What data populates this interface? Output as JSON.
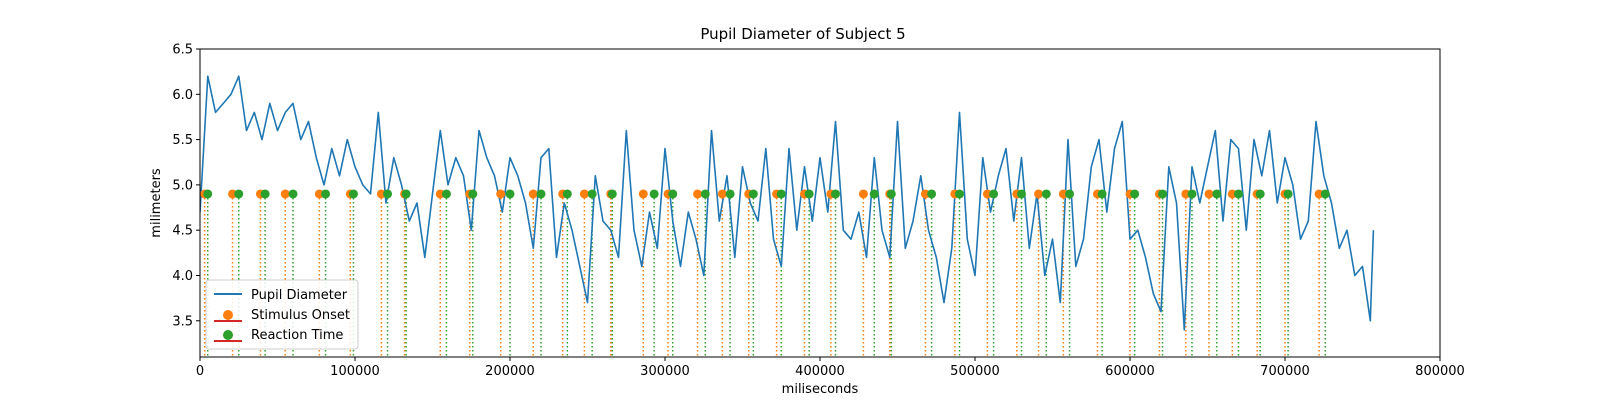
{
  "chart_data": {
    "type": "line",
    "title": "Pupil Diameter of Subject 5",
    "xlabel": "miliseconds",
    "ylabel": "milimeters",
    "xlim": [
      0,
      800000
    ],
    "ylim": [
      3.1,
      6.5
    ],
    "xticks": [
      0,
      100000,
      200000,
      300000,
      400000,
      500000,
      600000,
      700000,
      800000
    ],
    "xtick_labels": [
      "0",
      "100000",
      "200000",
      "300000",
      "400000",
      "500000",
      "600000",
      "700000",
      "800000"
    ],
    "yticks": [
      3.5,
      4.0,
      4.5,
      5.0,
      5.5,
      6.0,
      6.5
    ],
    "ytick_labels": [
      "3.5",
      "4.0",
      "4.5",
      "5.0",
      "5.5",
      "6.0",
      "6.5"
    ],
    "grid": false,
    "legend_position": "lower-left",
    "marker_y": 4.9,
    "series": [
      {
        "name": "Pupil Diameter",
        "kind": "line",
        "color": "#1f77b4",
        "x": [
          0,
          5000,
          10000,
          15000,
          20000,
          25000,
          30000,
          35000,
          40000,
          45000,
          50000,
          55000,
          60000,
          65000,
          70000,
          75000,
          80000,
          85000,
          90000,
          95000,
          100000,
          105000,
          110000,
          115000,
          120000,
          125000,
          130000,
          135000,
          140000,
          145000,
          150000,
          155000,
          160000,
          165000,
          170000,
          175000,
          180000,
          185000,
          190000,
          195000,
          200000,
          205000,
          210000,
          215000,
          220000,
          225000,
          230000,
          235000,
          240000,
          245000,
          250000,
          255000,
          260000,
          265000,
          270000,
          275000,
          280000,
          285000,
          290000,
          295000,
          300000,
          305000,
          310000,
          315000,
          320000,
          325000,
          330000,
          335000,
          340000,
          345000,
          350000,
          355000,
          360000,
          365000,
          370000,
          375000,
          380000,
          385000,
          390000,
          395000,
          400000,
          405000,
          410000,
          415000,
          420000,
          425000,
          430000,
          435000,
          440000,
          445000,
          450000,
          455000,
          460000,
          465000,
          470000,
          475000,
          480000,
          485000,
          490000,
          495000,
          500000,
          505000,
          510000,
          515000,
          520000,
          525000,
          530000,
          535000,
          540000,
          545000,
          550000,
          555000,
          560000,
          565000,
          570000,
          575000,
          580000,
          585000,
          590000,
          595000,
          600000,
          605000,
          610000,
          615000,
          620000,
          625000,
          630000,
          635000,
          640000,
          645000,
          650000,
          655000,
          660000,
          665000,
          670000,
          675000,
          680000,
          685000,
          690000,
          695000,
          700000,
          705000,
          710000,
          715000,
          720000,
          725000,
          730000,
          735000,
          740000,
          745000,
          750000,
          755000,
          757000
        ],
        "y": [
          4.7,
          6.2,
          5.8,
          5.9,
          6.0,
          6.2,
          5.6,
          5.8,
          5.5,
          5.9,
          5.6,
          5.8,
          5.9,
          5.5,
          5.7,
          5.3,
          5.0,
          5.4,
          5.1,
          5.5,
          5.2,
          5.0,
          4.9,
          5.8,
          4.8,
          5.3,
          5.0,
          4.6,
          4.8,
          4.2,
          4.9,
          5.6,
          5.0,
          5.3,
          5.1,
          4.5,
          5.6,
          5.3,
          5.1,
          4.7,
          5.3,
          5.1,
          4.8,
          4.3,
          5.3,
          5.4,
          4.2,
          4.8,
          4.5,
          4.1,
          3.7,
          5.1,
          4.6,
          4.5,
          4.2,
          5.6,
          4.5,
          4.1,
          4.7,
          4.3,
          5.4,
          4.6,
          4.1,
          4.7,
          4.4,
          4.0,
          5.6,
          4.6,
          5.1,
          4.2,
          5.2,
          4.8,
          4.6,
          5.4,
          4.4,
          4.1,
          5.4,
          4.5,
          5.2,
          4.6,
          5.3,
          4.7,
          5.7,
          4.5,
          4.4,
          4.7,
          4.2,
          5.3,
          4.5,
          4.2,
          5.7,
          4.3,
          4.6,
          5.1,
          4.5,
          4.2,
          3.7,
          4.3,
          5.8,
          4.4,
          4.0,
          5.3,
          4.7,
          5.1,
          5.4,
          4.6,
          5.3,
          4.3,
          4.9,
          4.0,
          4.4,
          3.7,
          5.5,
          4.1,
          4.4,
          5.2,
          5.5,
          4.7,
          5.4,
          5.7,
          4.4,
          4.5,
          4.2,
          3.8,
          3.6,
          5.2,
          4.8,
          3.4,
          5.2,
          4.8,
          5.2,
          5.6,
          4.6,
          5.5,
          5.4,
          4.5,
          5.5,
          5.1,
          5.6,
          4.8,
          5.3,
          5.0,
          4.4,
          4.6,
          5.7,
          5.1,
          4.8,
          4.3,
          4.5,
          4.0,
          4.1,
          3.5,
          4.5
        ]
      },
      {
        "name": "Stimulus Onset",
        "kind": "stem",
        "color": "#ff7f0e",
        "x": [
          3000,
          21000,
          39000,
          55000,
          77000,
          97000,
          117000,
          132000,
          155000,
          174000,
          194000,
          215000,
          234000,
          248000,
          265000,
          286000,
          302000,
          321000,
          337000,
          354000,
          372000,
          390000,
          407000,
          428000,
          445000,
          468000,
          487000,
          508000,
          527000,
          541000,
          557000,
          579000,
          600000,
          619000,
          636000,
          651000,
          666000,
          682000,
          700000,
          722000
        ]
      },
      {
        "name": "Reaction Time",
        "kind": "stem",
        "color": "#2ca02c",
        "x": [
          5000,
          25000,
          42000,
          60000,
          81000,
          99000,
          121000,
          133000,
          159000,
          176000,
          200000,
          220000,
          237000,
          253000,
          266000,
          293000,
          305000,
          326000,
          342000,
          357000,
          375000,
          393000,
          410000,
          435000,
          446000,
          472000,
          490000,
          512000,
          530000,
          546000,
          561000,
          582000,
          603000,
          621000,
          640000,
          656000,
          670000,
          684000,
          702000,
          726000
        ]
      }
    ]
  }
}
